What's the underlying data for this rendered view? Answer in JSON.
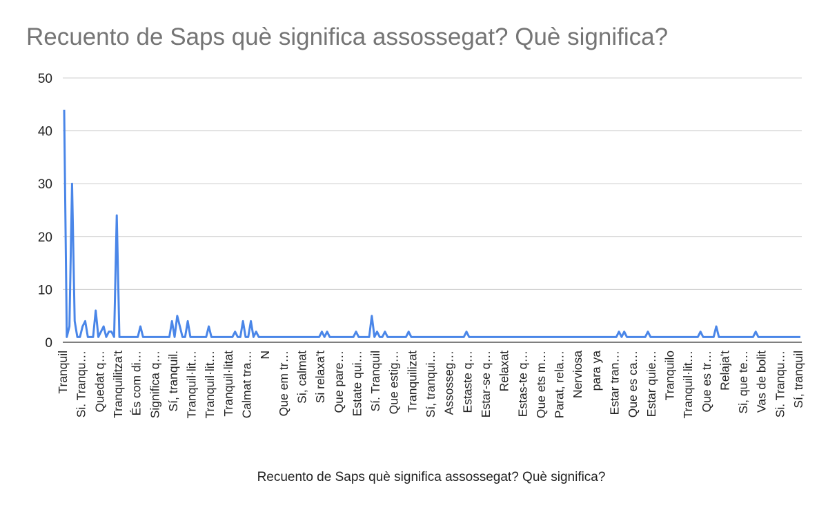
{
  "chart_data": {
    "type": "line",
    "title": "Recuento de Saps què significa assossegat? Què significa?",
    "xlabel": "Recuento de Saps què significa assossegat? Què significa?",
    "ylabel": "",
    "ylim": [
      0,
      50
    ],
    "yticks": [
      0,
      10,
      20,
      30,
      40,
      50
    ],
    "grid": true,
    "legend": "none",
    "color": "#4a86e8",
    "x_tick_labels": [
      "Tranquil",
      "Si. Tranqu…",
      "Quedat q…",
      "Tranquilitza't",
      "És com di…",
      "Significa q…",
      "Sí, tranquil.",
      "Tranquil·lit…",
      "Tranquil·lit…",
      "Tranquil·litat",
      "Calmat tra…",
      "N",
      "Que em tr…",
      "Si, calmat",
      "Si relaxa't",
      "Que pare…",
      "Estate qui…",
      "Sí. Tranquil",
      "Que estig…",
      "Tranquilizat",
      "Sí, tranqui…",
      "Assosseg…",
      "Estaste q…",
      "Estar-se q…",
      "Relaxat",
      "Estas-te q…",
      "Que ets m…",
      "Parat, rela…",
      "Nerviosa",
      "para ya",
      "Estar tran…",
      "Que es ca…",
      "Estar quie…",
      "Tranquilo",
      "Tranquil·lit…",
      "Que es tr…",
      "Relaja't",
      "Si, que te…",
      "Vas de bolit",
      "Si. Tranqu…",
      "Sí, tranquil"
    ],
    "values": [
      44,
      1,
      3,
      30,
      4,
      1,
      1,
      3,
      4,
      1,
      1,
      1,
      6,
      1,
      2,
      3,
      1,
      2,
      2,
      1,
      24,
      1,
      1,
      1,
      1,
      1,
      1,
      1,
      1,
      3,
      1,
      1,
      1,
      1,
      1,
      1,
      1,
      1,
      1,
      1,
      1,
      4,
      1,
      5,
      3,
      1,
      1,
      4,
      1,
      1,
      1,
      1,
      1,
      1,
      1,
      3,
      1,
      1,
      1,
      1,
      1,
      1,
      1,
      1,
      1,
      2,
      1,
      1,
      4,
      1,
      1,
      4,
      1,
      2,
      1,
      1,
      1,
      1,
      1,
      1,
      1,
      1,
      1,
      1,
      1,
      1,
      1,
      1,
      1,
      1,
      1,
      1,
      1,
      1,
      1,
      1,
      1,
      1,
      2,
      1,
      2,
      1,
      1,
      1,
      1,
      1,
      1,
      1,
      1,
      1,
      1,
      2,
      1,
      1,
      1,
      1,
      1,
      5,
      1,
      2,
      1,
      1,
      2,
      1,
      1,
      1,
      1,
      1,
      1,
      1,
      1,
      2,
      1,
      1,
      1,
      1,
      1,
      1,
      1,
      1,
      1,
      1,
      1,
      1,
      1,
      1,
      1,
      1,
      1,
      1,
      1,
      1,
      1,
      2,
      1,
      1,
      1,
      1,
      1,
      1,
      1,
      1,
      1,
      1,
      1,
      1,
      1,
      1,
      1,
      1,
      1,
      1,
      1,
      1,
      1,
      1,
      1,
      1,
      1,
      1,
      1,
      1,
      1,
      1,
      1,
      1,
      1,
      1,
      1,
      1,
      1,
      1,
      1,
      1,
      1,
      1,
      1,
      1,
      1,
      1,
      1,
      1,
      1,
      1,
      1,
      1,
      1,
      1,
      1,
      1,
      1,
      2,
      1,
      2,
      1,
      1,
      1,
      1,
      1,
      1,
      1,
      1,
      2,
      1,
      1,
      1,
      1,
      1,
      1,
      1,
      1,
      1,
      1,
      1,
      1,
      1,
      1,
      1,
      1,
      1,
      1,
      1,
      2,
      1,
      1,
      1,
      1,
      1,
      3,
      1,
      1,
      1,
      1,
      1,
      1,
      1,
      1,
      1,
      1,
      1,
      1,
      1,
      1,
      2,
      1,
      1,
      1,
      1,
      1,
      1,
      1,
      1,
      1,
      1,
      1,
      1,
      1,
      1,
      1,
      1,
      1
    ]
  }
}
